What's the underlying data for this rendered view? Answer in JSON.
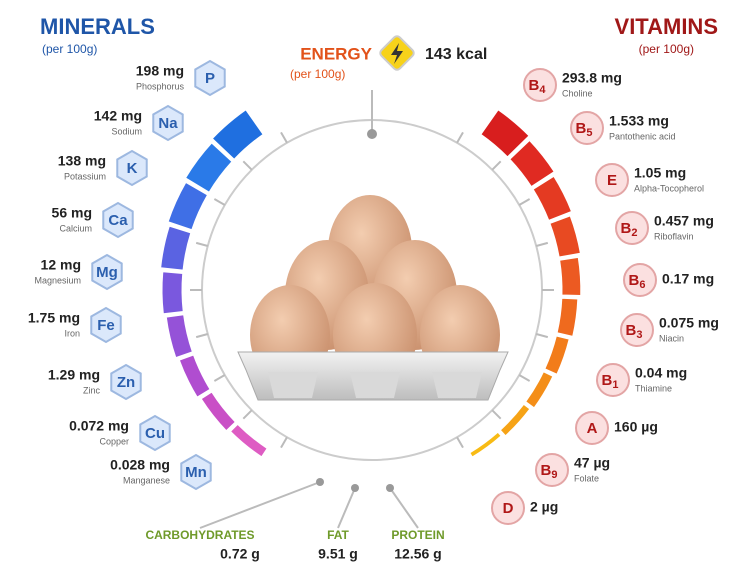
{
  "minerals": {
    "title": "MINERALS",
    "subtitle": "(per 100g)",
    "items": [
      {
        "symbol": "P",
        "amount": "198 mg",
        "name": "Phosphorus"
      },
      {
        "symbol": "Na",
        "amount": "142 mg",
        "name": "Sodium"
      },
      {
        "symbol": "K",
        "amount": "138 mg",
        "name": "Potassium"
      },
      {
        "symbol": "Ca",
        "amount": "56 mg",
        "name": "Calcium"
      },
      {
        "symbol": "Mg",
        "amount": "12 mg",
        "name": "Magnesium"
      },
      {
        "symbol": "Fe",
        "amount": "1.75 mg",
        "name": "Iron"
      },
      {
        "symbol": "Zn",
        "amount": "1.29 mg",
        "name": "Zinc"
      },
      {
        "symbol": "Cu",
        "amount": "0.072 mg",
        "name": "Copper"
      },
      {
        "symbol": "Mn",
        "amount": "0.028 mg",
        "name": "Manganese"
      }
    ]
  },
  "vitamins": {
    "title": "VITAMINS",
    "subtitle": "(per 100g)",
    "items": [
      {
        "letter": "B",
        "sub": "4",
        "amount": "293.8 mg",
        "name": "Choline"
      },
      {
        "letter": "B",
        "sub": "5",
        "amount": "1.533 mg",
        "name": "Pantothenic acid"
      },
      {
        "letter": "E",
        "amount": "1.05 mg",
        "name": "Alpha-Tocopherol"
      },
      {
        "letter": "B",
        "sub": "2",
        "amount": "0.457 mg",
        "name": "Riboflavin"
      },
      {
        "letter": "B",
        "sub": "6",
        "amount": "0.17 mg"
      },
      {
        "letter": "B",
        "sub": "3",
        "amount": "0.075 mg",
        "name": "Niacin"
      },
      {
        "letter": "B",
        "sub": "1",
        "amount": "0.04 mg",
        "name": "Thiamine"
      },
      {
        "letter": "A",
        "amount": "160 µg"
      },
      {
        "letter": "B",
        "sub": "9",
        "amount": "47 µg",
        "name": "Folate"
      },
      {
        "letter": "D",
        "amount": "2 µg"
      }
    ]
  },
  "energy": {
    "title": "ENERGY",
    "subtitle": "(per 100g)",
    "value": "143 kcal"
  },
  "macros": [
    {
      "name": "CARBOHYDRATES",
      "amount": "0.72 g"
    },
    {
      "name": "FAT",
      "amount": "9.51 g"
    },
    {
      "name": "PROTEIN",
      "amount": "12.56 g"
    }
  ]
}
